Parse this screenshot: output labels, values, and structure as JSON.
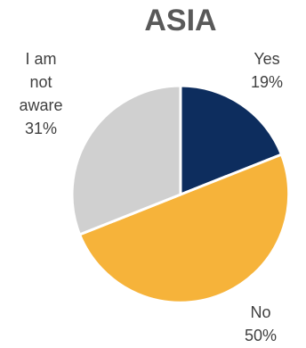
{
  "chart_data": {
    "type": "pie",
    "title": "ASIA",
    "slices": [
      {
        "lines": [
          "Yes",
          "19%"
        ],
        "value": 19,
        "color": "#0d2d5e"
      },
      {
        "lines": [
          "No",
          "50%"
        ],
        "value": 50,
        "color": "#f6b33a"
      },
      {
        "lines": [
          "I am",
          "not",
          "aware",
          "31%"
        ],
        "value": 31,
        "color": "#d0d0d0"
      }
    ]
  }
}
